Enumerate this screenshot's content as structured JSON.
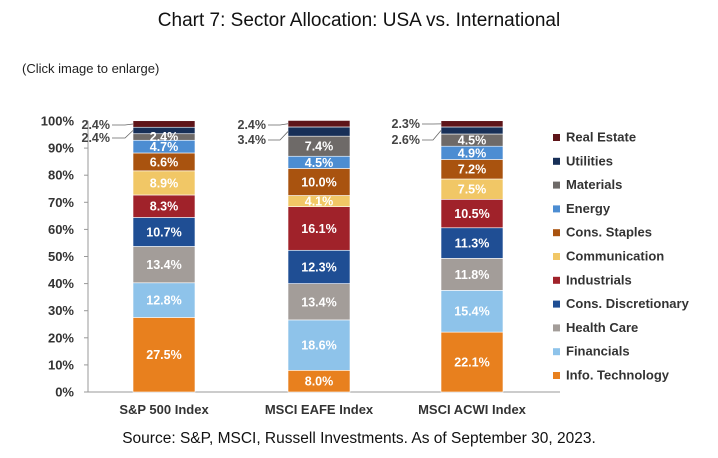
{
  "page": {
    "title": "Chart 7: Sector Allocation: USA vs. International",
    "enlarge_note": "(Click image to enlarge)",
    "source": "Source: S&P, MSCI, Russell Investments. As of September 30, 2023."
  },
  "chart_data": {
    "type": "bar",
    "stacked": true,
    "categories": [
      "S&P 500 Index",
      "MSCI EAFE Index",
      "MSCI ACWI Index"
    ],
    "ylim": [
      0,
      100
    ],
    "yticks": [
      "0%",
      "10%",
      "20%",
      "30%",
      "40%",
      "50%",
      "60%",
      "70%",
      "80%",
      "90%",
      "100%"
    ],
    "legend_position": "right",
    "series": [
      {
        "name": "Info. Technology",
        "color": "#E8801E",
        "values": [
          27.5,
          8.0,
          22.1
        ],
        "labels": [
          "27.5%",
          "8.0%",
          "22.1%"
        ]
      },
      {
        "name": "Financials",
        "color": "#8EC3EA",
        "values": [
          12.8,
          18.6,
          15.4
        ],
        "labels": [
          "12.8%",
          "18.6%",
          "15.4%"
        ]
      },
      {
        "name": "Health Care",
        "color": "#A39D99",
        "values": [
          13.4,
          13.4,
          11.8
        ],
        "labels": [
          "13.4%",
          "13.4%",
          "11.8%"
        ]
      },
      {
        "name": "Cons. Discretionary",
        "color": "#1F4E94",
        "values": [
          10.7,
          12.3,
          11.3
        ],
        "labels": [
          "10.7%",
          "12.3%",
          "11.3%"
        ]
      },
      {
        "name": "Industrials",
        "color": "#A0222A",
        "values": [
          8.3,
          16.1,
          10.5
        ],
        "labels": [
          "8.3%",
          "16.1%",
          "10.5%"
        ]
      },
      {
        "name": "Communication",
        "color": "#F1C766",
        "values": [
          8.9,
          4.1,
          7.5
        ],
        "labels": [
          "8.9%",
          "4.1%",
          "7.5%"
        ]
      },
      {
        "name": "Cons. Staples",
        "color": "#A9530F",
        "values": [
          6.6,
          10.0,
          7.2
        ],
        "labels": [
          "6.6%",
          "10.0%",
          "7.2%"
        ]
      },
      {
        "name": "Energy",
        "color": "#4C8DD2",
        "values": [
          4.7,
          4.5,
          4.9
        ],
        "labels": [
          "4.7%",
          "4.5%",
          "4.9%"
        ]
      },
      {
        "name": "Materials",
        "color": "#6E6A68",
        "values": [
          2.4,
          7.4,
          4.5
        ],
        "labels": [
          "2.4%",
          "7.4%",
          "4.5%"
        ]
      },
      {
        "name": "Utilities",
        "color": "#172F57",
        "values": [
          2.4,
          3.4,
          2.6
        ],
        "labels": [
          "2.4%",
          "3.4%",
          "2.6%"
        ]
      },
      {
        "name": "Real Estate",
        "color": "#5E1519",
        "values": [
          2.4,
          2.4,
          2.3
        ],
        "labels": [
          "2.4%",
          "2.4%",
          "2.3%"
        ]
      }
    ]
  }
}
